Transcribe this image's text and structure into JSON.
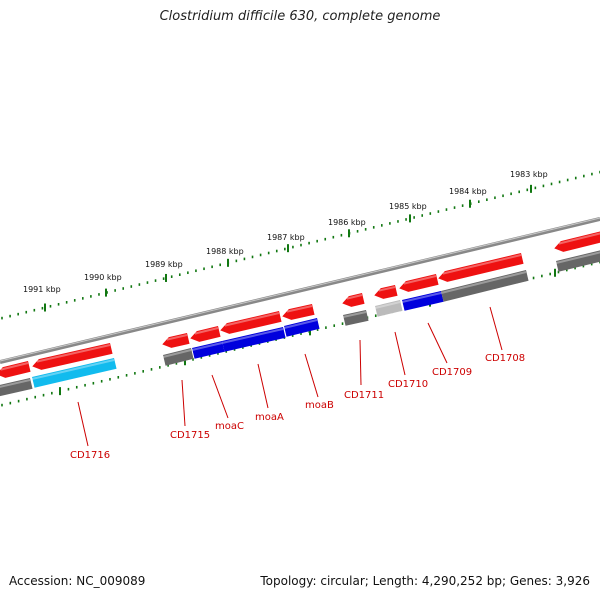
{
  "header": {
    "title": "Clostridium difficile 630, complete genome"
  },
  "footer": {
    "accession": "Accession: NC_009089",
    "topology": "Topology: circular; Length: 4,290,252 bp; Genes: 3,926"
  },
  "colors": {
    "forward_arrow": "#ee1111",
    "reverse_gray": "#666666",
    "reverse_light_gray": "#bbbbbb",
    "reverse_blue": "#0000dd",
    "reverse_cyan": "#11bbee",
    "backbone": "#888888",
    "tick": "#117711",
    "label": "#cc0000"
  },
  "scale": {
    "ticks": [
      "1983 kbp",
      "1984 kbp",
      "1985 kbp",
      "1986 kbp",
      "1987 kbp",
      "1988 kbp",
      "1989 kbp",
      "1990 kbp",
      "1991 kbp"
    ]
  },
  "genes": [
    {
      "label": "CD1716",
      "strand": "reverse",
      "color": "cyan"
    },
    {
      "label": "CD1715",
      "strand": "reverse",
      "color": "gray"
    },
    {
      "label": "moaC",
      "strand": "reverse",
      "color": "blue"
    },
    {
      "label": "moaA",
      "strand": "reverse",
      "color": "blue"
    },
    {
      "label": "moaB",
      "strand": "reverse",
      "color": "blue"
    },
    {
      "label": "CD1711",
      "strand": "reverse",
      "color": "gray"
    },
    {
      "label": "CD1710",
      "strand": "reverse",
      "color": "light-gray"
    },
    {
      "label": "CD1709",
      "strand": "reverse",
      "color": "blue"
    },
    {
      "label": "CD1708",
      "strand": "reverse",
      "color": "gray"
    }
  ]
}
